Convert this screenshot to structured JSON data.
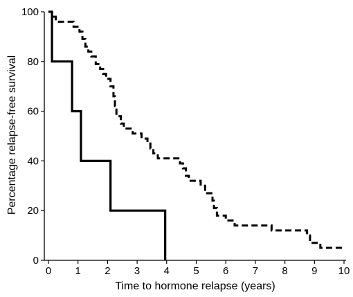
{
  "chart_data": {
    "type": "line",
    "step": true,
    "xlabel": "Time to hormone relapse (years)",
    "ylabel": "Percentage relapse-free survival",
    "xlim": [
      0,
      10
    ],
    "ylim": [
      0,
      100
    ],
    "xticks": [
      0,
      1,
      2,
      3,
      4,
      5,
      6,
      7,
      8,
      9,
      10
    ],
    "yticks": [
      0,
      20,
      40,
      60,
      80,
      100
    ],
    "grid": false,
    "legend": "none",
    "series": [
      {
        "style": "solid",
        "color": "#000000",
        "points": [
          [
            0,
            100
          ],
          [
            0.12,
            80
          ],
          [
            0.8,
            60
          ],
          [
            1.1,
            40
          ],
          [
            2.1,
            20
          ],
          [
            3.95,
            0
          ]
        ]
      },
      {
        "style": "dashed",
        "color": "#000000",
        "points": [
          [
            0,
            100
          ],
          [
            0.12,
            98
          ],
          [
            0.25,
            96
          ],
          [
            0.85,
            94
          ],
          [
            1.05,
            92
          ],
          [
            1.15,
            89
          ],
          [
            1.25,
            86
          ],
          [
            1.35,
            84
          ],
          [
            1.45,
            82
          ],
          [
            1.6,
            79
          ],
          [
            1.75,
            77
          ],
          [
            1.85,
            75
          ],
          [
            1.95,
            73
          ],
          [
            2.1,
            70
          ],
          [
            2.2,
            66
          ],
          [
            2.25,
            62
          ],
          [
            2.3,
            58
          ],
          [
            2.45,
            55
          ],
          [
            2.55,
            53
          ],
          [
            2.85,
            51
          ],
          [
            3.15,
            49
          ],
          [
            3.35,
            47
          ],
          [
            3.45,
            45
          ],
          [
            3.55,
            43
          ],
          [
            3.7,
            41
          ],
          [
            4.45,
            39
          ],
          [
            4.55,
            37
          ],
          [
            4.65,
            34
          ],
          [
            4.75,
            32
          ],
          [
            5.15,
            30
          ],
          [
            5.3,
            27
          ],
          [
            5.55,
            24
          ],
          [
            5.6,
            21
          ],
          [
            5.7,
            18
          ],
          [
            6.0,
            16
          ],
          [
            6.3,
            14
          ],
          [
            7.55,
            12
          ],
          [
            8.75,
            10
          ],
          [
            8.85,
            7
          ],
          [
            9.2,
            5
          ],
          [
            10,
            5
          ]
        ]
      }
    ]
  }
}
